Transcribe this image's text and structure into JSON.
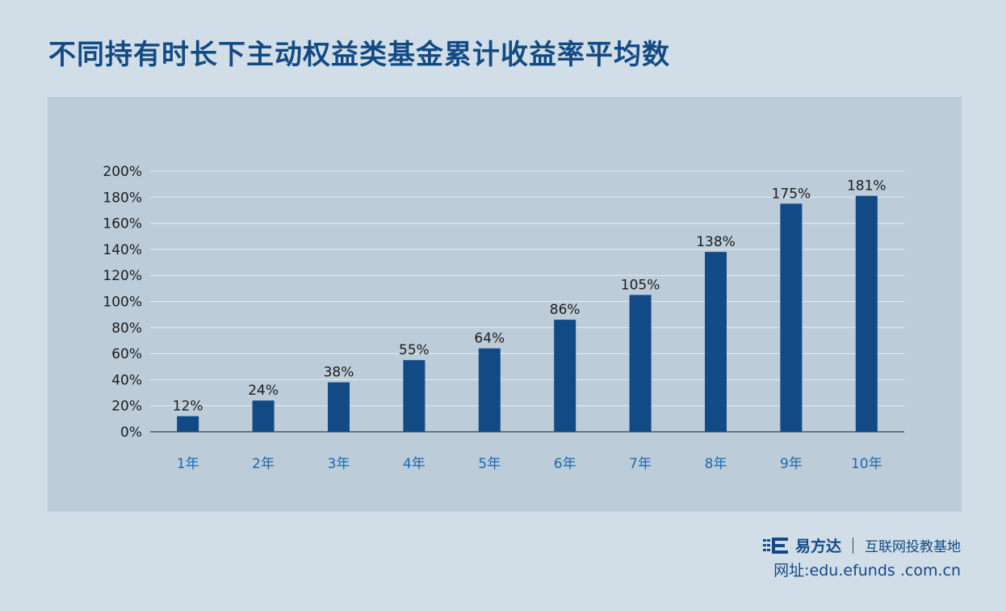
{
  "title": "不同持有时长下主动权益类基金累计收益率平均数",
  "chart_data": {
    "type": "bar",
    "title": "不同持有时长下主动权益类基金累计收益率平均数",
    "categories": [
      "1年",
      "2年",
      "3年",
      "4年",
      "5年",
      "6年",
      "7年",
      "8年",
      "9年",
      "10年"
    ],
    "values": [
      12,
      24,
      38,
      55,
      64,
      86,
      105,
      138,
      175,
      181
    ],
    "data_labels": [
      "12%",
      "24%",
      "38%",
      "55%",
      "64%",
      "86%",
      "105%",
      "138%",
      "175%",
      "181%"
    ],
    "y_ticks": [
      0,
      20,
      40,
      60,
      80,
      100,
      120,
      140,
      160,
      180,
      200
    ],
    "y_tick_labels": [
      "0%",
      "20%",
      "40%",
      "60%",
      "80%",
      "100%",
      "120%",
      "140%",
      "160%",
      "180%",
      "200%"
    ],
    "ylim": [
      0,
      200
    ],
    "xlabel": "",
    "ylabel": "",
    "grid": true,
    "bar_color": "#124a86",
    "category_label_color": "#1b6ab0"
  },
  "footer": {
    "logo_icon": "efunds-logo-icon",
    "brand_name": "易方达",
    "brand_tagline": "互联网投教基地",
    "url_text": "网址:edu.efunds .com.cn"
  }
}
